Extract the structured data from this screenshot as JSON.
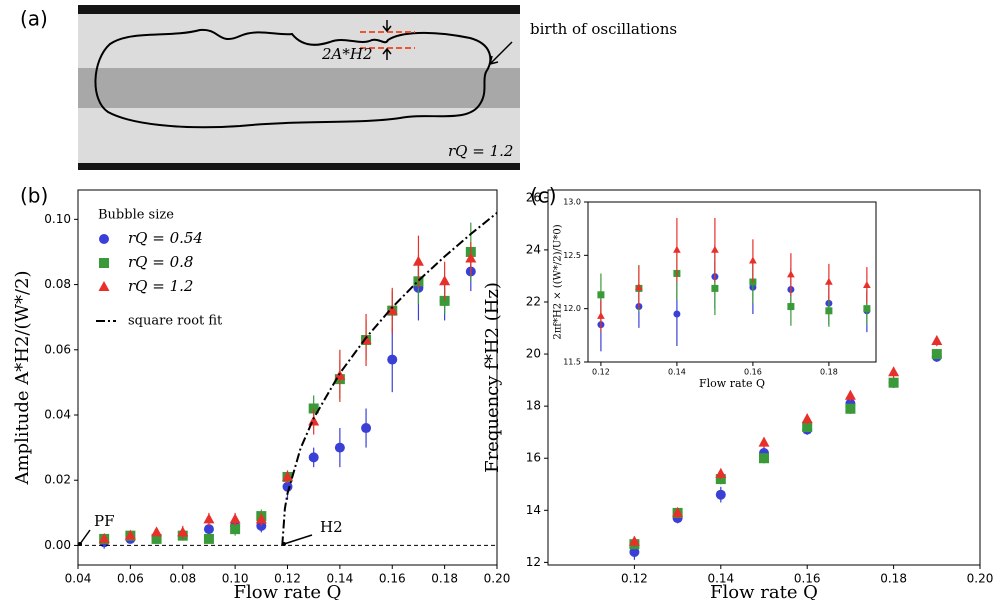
{
  "chart_data": [
    {
      "type": "image",
      "panel_label": "(a)",
      "annotations": [
        "birth of oscillations",
        "2A*H2",
        "rQ = 1.2"
      ]
    },
    {
      "type": "scatter",
      "panel_label": "(b)",
      "xlabel": "Flow rate Q",
      "ylabel": "Amplitude A*H2/(W*/2)",
      "xlim": [
        0.04,
        0.2
      ],
      "ylim": [
        -0.006,
        0.109
      ],
      "xticks": [
        0.04,
        0.06,
        0.08,
        {
          "value": 0.1,
          "label": "0.10"
        },
        0.12,
        0.14,
        0.16,
        0.18,
        {
          "value": 0.2,
          "label": "0.20"
        }
      ],
      "yticks": [
        {
          "value": 0,
          "label": "0.00"
        },
        0.02,
        0.04,
        0.06,
        0.08,
        {
          "value": 0.1,
          "label": "0.10"
        }
      ],
      "legend": "upper left",
      "legend_title": "Bubble size",
      "annotations": [
        "PF",
        "H2"
      ],
      "x": [
        0.05,
        0.06,
        0.07,
        0.08,
        0.09,
        0.1,
        0.11,
        0.12,
        0.13,
        0.14,
        0.15,
        0.16,
        0.17,
        0.18,
        0.19
      ],
      "series": [
        {
          "name": "rQ = 0.54",
          "color": "#3a3fd6",
          "marker": "circle",
          "values": [
            0.001,
            0.002,
            0.002,
            0.003,
            0.005,
            0.006,
            0.006,
            0.018,
            0.027,
            0.03,
            0.036,
            0.057,
            0.079,
            0.075,
            0.084
          ],
          "errors": [
            0.002,
            0.001,
            0.001,
            0.001,
            0.002,
            0.002,
            0.002,
            0.004,
            0.003,
            0.006,
            0.006,
            0.01,
            0.01,
            0.006,
            0.006
          ]
        },
        {
          "name": "rQ = 0.8",
          "color": "#3a9a3a",
          "marker": "square",
          "values": [
            0.002,
            0.003,
            0.002,
            0.003,
            0.002,
            0.005,
            0.009,
            0.021,
            0.042,
            0.051,
            0.063,
            0.072,
            0.081,
            0.075,
            0.09
          ],
          "errors": [
            0.001,
            0.001,
            0.001,
            0.001,
            0.001,
            0.002,
            0.002,
            0.002,
            0.004,
            0.006,
            0.006,
            0.006,
            0.007,
            0.004,
            0.009
          ]
        },
        {
          "name": "rQ = 1.2",
          "color": "#e8302a",
          "marker": "triangle",
          "values": [
            0.002,
            0.003,
            0.004,
            0.004,
            0.008,
            0.008,
            0.008,
            0.021,
            0.038,
            0.052,
            0.063,
            0.072,
            0.087,
            0.081,
            0.088
          ],
          "errors": [
            0.001,
            0.001,
            0.001,
            0.002,
            0.002,
            0.002,
            0.002,
            0.002,
            0.004,
            0.008,
            0.008,
            0.007,
            0.008,
            0.006,
            0.005
          ]
        },
        {
          "name": "square root fit",
          "color": "#000000",
          "line": "dashdot",
          "x": [
            0.118,
            0.119,
            0.12,
            0.125,
            0.13,
            0.14,
            0.15,
            0.16,
            0.17,
            0.18,
            0.19,
            0.2
          ],
          "values": [
            0,
            0.0113,
            0.0159,
            0.0298,
            0.039,
            0.0528,
            0.0637,
            0.073,
            0.0812,
            0.0886,
            0.0955,
            0.102
          ]
        },
        {
          "color": "#000000",
          "line": "dashed",
          "x": [
            0.04,
            0.2
          ],
          "values": [
            0,
            0
          ]
        }
      ]
    },
    {
      "type": "scatter",
      "panel_label": "(c)",
      "xlabel": "Flow rate Q",
      "ylabel": "Frequency f*H2 (Hz)",
      "xlim": [
        0.1,
        0.2
      ],
      "ylim": [
        11.9,
        26.3
      ],
      "xticks": [
        0.12,
        0.14,
        0.16,
        0.18,
        {
          "value": 0.2,
          "label": "0.20"
        }
      ],
      "yticks": [
        12,
        14,
        16,
        18,
        20,
        22,
        24,
        26
      ],
      "x": [
        0.12,
        0.13,
        0.14,
        0.15,
        0.16,
        0.17,
        0.18,
        0.19
      ],
      "series": [
        {
          "name": "rQ = 0.54",
          "color": "#3a3fd6",
          "marker": "circle",
          "values": [
            12.4,
            13.7,
            14.6,
            16.2,
            17.1,
            18.1,
            18.9,
            19.9
          ],
          "errors": [
            0.3,
            0.2,
            0.3,
            0.3,
            0.2,
            0.2,
            0.2,
            0.2
          ]
        },
        {
          "name": "rQ = 0.8",
          "color": "#3a9a3a",
          "marker": "square",
          "values": [
            12.7,
            13.9,
            15.2,
            16.0,
            17.2,
            17.9,
            18.9,
            20.0
          ],
          "errors": [
            0.2,
            0.2,
            0.2,
            0.2,
            0.2,
            0.2,
            0.2,
            0.2
          ]
        },
        {
          "name": "rQ = 1.2",
          "color": "#e8302a",
          "marker": "triangle",
          "values": [
            12.8,
            13.9,
            15.4,
            16.6,
            17.5,
            18.4,
            19.3,
            20.5
          ],
          "errors": [
            0.2,
            0.2,
            0.2,
            0.2,
            0.2,
            0.2,
            0.2,
            0.2
          ]
        }
      ]
    },
    {
      "type": "scatter",
      "xlabel": "Flow rate Q",
      "ylabel": "2πf*H2 × ((W*/2)/U*0)",
      "xlim": [
        0.1166,
        0.1924
      ],
      "ylim": [
        11.5,
        13.0
      ],
      "xticks": [
        0.12,
        0.14,
        0.16,
        0.18
      ],
      "yticks": [
        11.5,
        {
          "value": 12,
          "label": "12.0"
        },
        12.5,
        {
          "value": 13,
          "label": "13.0"
        }
      ],
      "x": [
        0.12,
        0.13,
        0.14,
        0.15,
        0.16,
        0.17,
        0.18,
        0.19
      ],
      "series": [
        {
          "name": "rQ = 0.54",
          "color": "#3a3fd6",
          "marker": "circle",
          "values": [
            11.85,
            12.02,
            11.95,
            12.3,
            12.2,
            12.18,
            12.05,
            11.98
          ],
          "errors": [
            0.25,
            0.2,
            0.3,
            0.3,
            0.25,
            0.2,
            0.2,
            0.2
          ]
        },
        {
          "name": "rQ = 0.8",
          "color": "#3a9a3a",
          "marker": "square",
          "values": [
            12.13,
            12.19,
            12.33,
            12.19,
            12.25,
            12.02,
            11.98,
            12.0
          ],
          "errors": [
            0.2,
            0.22,
            0.25,
            0.25,
            0.2,
            0.18,
            0.15,
            0.15
          ]
        },
        {
          "name": "rQ = 1.2",
          "color": "#e8302a",
          "marker": "triangle",
          "values": [
            11.93,
            12.2,
            12.55,
            12.55,
            12.45,
            12.32,
            12.25,
            12.22
          ],
          "errors": [
            0.15,
            0.2,
            0.3,
            0.3,
            0.2,
            0.2,
            0.17,
            0.17
          ]
        }
      ]
    }
  ]
}
